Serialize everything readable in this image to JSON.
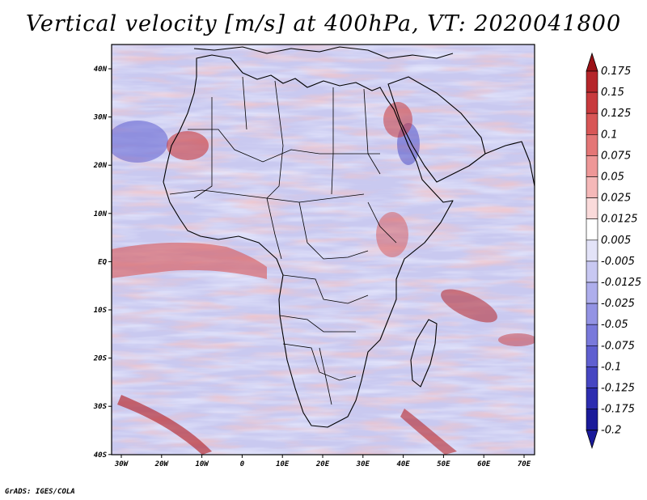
{
  "title": "Vertical velocity [m/s] at 400hPa, VT: 2020041800",
  "credit": "GrADS: IGES/COLA",
  "map": {
    "lon_range": [
      -30,
      75
    ],
    "lat_range": [
      -40,
      45
    ],
    "x_ticks": [
      "30W",
      "20W",
      "10W",
      "0",
      "10E",
      "20E",
      "30E",
      "40E",
      "50E",
      "60E",
      "70E"
    ],
    "y_ticks": [
      "40N",
      "30N",
      "20N",
      "10N",
      "EQ",
      "10S",
      "20S",
      "30S",
      "40S"
    ]
  },
  "colorbar": {
    "labels": [
      "0.175",
      "0.15",
      "0.125",
      "0.1",
      "0.075",
      "0.05",
      "0.025",
      "0.0125",
      "0.005",
      "-0.005",
      "-0.0125",
      "-0.025",
      "-0.05",
      "-0.075",
      "-0.1",
      "-0.125",
      "-0.175",
      "-0.2"
    ],
    "colors": [
      "#9b1116",
      "#b5252a",
      "#c83a3d",
      "#d85656",
      "#e47676",
      "#ee9797",
      "#f5b8b8",
      "#fadada",
      "#ffffff",
      "#e3e3f8",
      "#c8c8f2",
      "#aeaeec",
      "#9393e4",
      "#7979db",
      "#5f5fd0",
      "#4646c2",
      "#2d2db0",
      "#1a1a9a"
    ],
    "top_color": "#9b1116",
    "bottom_color": "#1a1a9a"
  }
}
